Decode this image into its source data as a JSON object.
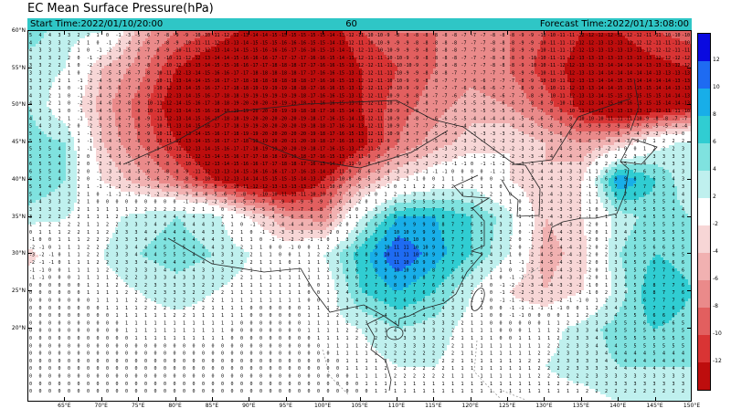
{
  "title": "EC Mean Surface Pressure(hPa)",
  "header": {
    "start_time": "Start Time:2022/01/10/20:00",
    "forecast_hour": "60",
    "forecast_time": "Forecast Time:2022/01/13:08:00",
    "bar_color": "#2fc6c6"
  },
  "chart_data": {
    "type": "heatmap",
    "title": "EC Mean Surface Pressure(hPa)",
    "units": "hPa",
    "description": "EC ensemble mean surface pressure anomaly field over East Asia with gridded numeric values; blue = positive, red = negative",
    "lon_range": [
      60,
      150
    ],
    "lat_range": [
      10,
      60
    ],
    "x_ticks": [
      {
        "lon": 65,
        "label": "65°E"
      },
      {
        "lon": 70,
        "label": "70°E"
      },
      {
        "lon": 75,
        "label": "75°E"
      },
      {
        "lon": 80,
        "label": "80°E"
      },
      {
        "lon": 85,
        "label": "85°E"
      },
      {
        "lon": 90,
        "label": "90°E"
      },
      {
        "lon": 95,
        "label": "95°E"
      },
      {
        "lon": 100,
        "label": "100°E"
      },
      {
        "lon": 105,
        "label": "105°E"
      },
      {
        "lon": 110,
        "label": "110°E"
      },
      {
        "lon": 115,
        "label": "115°E"
      },
      {
        "lon": 120,
        "label": "120°E"
      },
      {
        "lon": 125,
        "label": "125°E"
      },
      {
        "lon": 130,
        "label": "130°E"
      },
      {
        "lon": 135,
        "label": "135°E"
      },
      {
        "lon": 140,
        "label": "140°E"
      },
      {
        "lon": 145,
        "label": "145°E"
      },
      {
        "lon": 150,
        "label": "150°E"
      }
    ],
    "y_ticks": [
      {
        "lat": 60,
        "label": "60°N"
      },
      {
        "lat": 55,
        "label": "55°N"
      },
      {
        "lat": 50,
        "label": "50°N"
      },
      {
        "lat": 45,
        "label": "45°N"
      },
      {
        "lat": 40,
        "label": "40°N"
      },
      {
        "lat": 35,
        "label": "35°N"
      },
      {
        "lat": 30,
        "label": "30°N"
      },
      {
        "lat": 25,
        "label": "25°N"
      },
      {
        "lat": 20,
        "label": "20°N"
      }
    ],
    "colorbar": {
      "levels": [
        12,
        10,
        8,
        6,
        4,
        2,
        -2,
        -4,
        -6,
        -8,
        -10,
        -12
      ],
      "labels": [
        "12",
        "10",
        "8",
        "6",
        "4",
        "2",
        "-2",
        "-4",
        "-6",
        "-8",
        "-10",
        "-12"
      ],
      "colors": [
        "#0a0ae0",
        "#1e6bf2",
        "#18aee8",
        "#30cdd2",
        "#7fe2df",
        "#bff0ee",
        "#ffffff",
        "#f7d6d6",
        "#f1b1b1",
        "#ea8a8a",
        "#e25f5f",
        "#d93434",
        "#bd0d0d"
      ]
    },
    "grid": {
      "lons": [
        60,
        65,
        70,
        75,
        80,
        85,
        90,
        95,
        100,
        105,
        110,
        115,
        120,
        125,
        130,
        135,
        140,
        145,
        150
      ],
      "lats": [
        60,
        55,
        50,
        45,
        40,
        35,
        30,
        25,
        20,
        15,
        10
      ],
      "values": [
        [
          5,
          3,
          2,
          -5,
          -8,
          -10,
          -13,
          -15,
          -14,
          -10,
          -8,
          -8,
          -7,
          -8,
          -10,
          -12,
          -12,
          -10,
          -9
        ],
        [
          3,
          2,
          -4,
          -7,
          -12,
          -15,
          -17,
          -18,
          -16,
          -12,
          -10,
          -8,
          -7,
          -8,
          -11,
          -13,
          -14,
          -13,
          -12
        ],
        [
          4,
          0,
          -5,
          -9,
          -14,
          -18,
          -20,
          -19,
          -16,
          -12,
          -9,
          -7,
          -5,
          -6,
          -9,
          -13,
          -16,
          -15,
          -13
        ],
        [
          5,
          4,
          -4,
          -8,
          -12,
          -16,
          -19,
          -21,
          -18,
          -13,
          -8,
          -5,
          -3,
          -2,
          -4,
          -6,
          -4,
          1,
          3
        ],
        [
          6,
          4,
          -2,
          -5,
          -8,
          -12,
          -15,
          -16,
          -12,
          -6,
          -2,
          0,
          1,
          -2,
          -4,
          -2,
          10,
          6,
          2
        ],
        [
          3,
          2,
          1,
          3,
          4,
          3,
          -2,
          -6,
          -7,
          2,
          8,
          8,
          6,
          3,
          -4,
          -2,
          3,
          5,
          4
        ],
        [
          -3,
          1,
          2,
          4,
          5,
          4,
          2,
          0,
          2,
          7,
          12,
          9,
          6,
          2,
          -5,
          -3,
          4,
          6,
          5
        ],
        [
          0,
          0,
          1,
          2,
          3,
          2,
          1,
          1,
          0,
          6,
          8,
          6,
          2,
          -2,
          -4,
          -2,
          3,
          8,
          6
        ],
        [
          0,
          0,
          0,
          1,
          1,
          1,
          0,
          0,
          1,
          2,
          4,
          3,
          1,
          0,
          1,
          3,
          5,
          6,
          5
        ],
        [
          0,
          0,
          0,
          0,
          0,
          0,
          0,
          0,
          0,
          1,
          2,
          2,
          1,
          1,
          2,
          3,
          4,
          4,
          4
        ],
        [
          0,
          0,
          0,
          0,
          0,
          0,
          0,
          0,
          0,
          0,
          1,
          1,
          1,
          1,
          1,
          1,
          2,
          2,
          2
        ]
      ]
    }
  }
}
